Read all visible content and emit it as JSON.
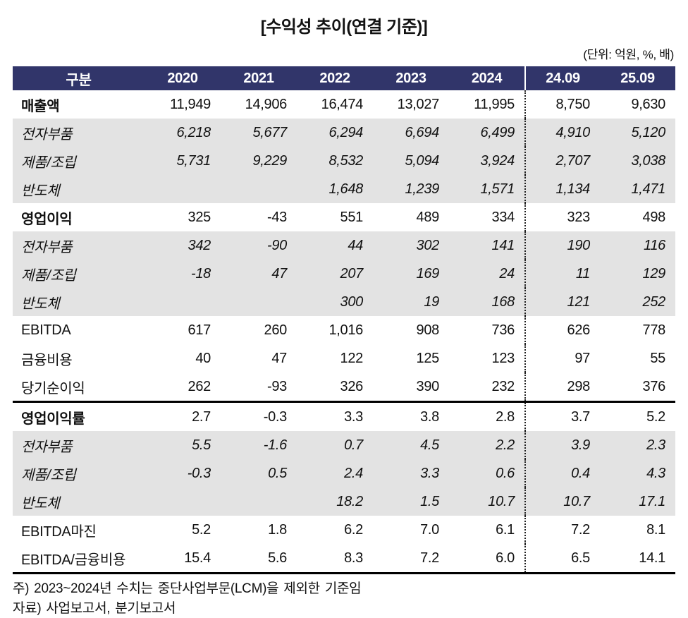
{
  "title": "[수익성 추이(연결 기준)]",
  "unit_note": "(단위: 억원, %, 배)",
  "table": {
    "header": [
      "구분",
      "2020",
      "2021",
      "2022",
      "2023",
      "2024",
      "24.09",
      "25.09"
    ],
    "rows": [
      {
        "label": "매출액",
        "style": "bold",
        "values": [
          "11,949",
          "14,906",
          "16,474",
          "13,027",
          "11,995",
          "8,750",
          "9,630"
        ]
      },
      {
        "label": "전자부품",
        "style": "sub",
        "values": [
          "6,218",
          "5,677",
          "6,294",
          "6,694",
          "6,499",
          "4,910",
          "5,120"
        ]
      },
      {
        "label": "제품/조립",
        "style": "sub",
        "values": [
          "5,731",
          "9,229",
          "8,532",
          "5,094",
          "3,924",
          "2,707",
          "3,038"
        ]
      },
      {
        "label": "반도체",
        "style": "sub",
        "values": [
          "",
          "",
          "1,648",
          "1,239",
          "1,571",
          "1,134",
          "1,471"
        ]
      },
      {
        "label": "영업이익",
        "style": "bold",
        "values": [
          "325",
          "-43",
          "551",
          "489",
          "334",
          "323",
          "498"
        ]
      },
      {
        "label": "전자부품",
        "style": "sub",
        "values": [
          "342",
          "-90",
          "44",
          "302",
          "141",
          "190",
          "116"
        ]
      },
      {
        "label": "제품/조립",
        "style": "sub",
        "values": [
          "-18",
          "47",
          "207",
          "169",
          "24",
          "11",
          "129"
        ]
      },
      {
        "label": "반도체",
        "style": "sub",
        "values": [
          "",
          "",
          "300",
          "19",
          "168",
          "121",
          "252"
        ]
      },
      {
        "label": "EBITDA",
        "style": "plain",
        "values": [
          "617",
          "260",
          "1,016",
          "908",
          "736",
          "626",
          "778"
        ]
      },
      {
        "label": "금융비용",
        "style": "plain",
        "values": [
          "40",
          "47",
          "122",
          "125",
          "123",
          "97",
          "55"
        ]
      },
      {
        "label": "당기순이익",
        "style": "plain",
        "values": [
          "262",
          "-93",
          "326",
          "390",
          "232",
          "298",
          "376"
        ]
      },
      {
        "label": "영업이익률",
        "style": "bold",
        "separator_above": true,
        "values": [
          "2.7",
          "-0.3",
          "3.3",
          "3.8",
          "2.8",
          "3.7",
          "5.2"
        ]
      },
      {
        "label": "전자부품",
        "style": "sub",
        "values": [
          "5.5",
          "-1.6",
          "0.7",
          "4.5",
          "2.2",
          "3.9",
          "2.3"
        ]
      },
      {
        "label": "제품/조립",
        "style": "sub",
        "values": [
          "-0.3",
          "0.5",
          "2.4",
          "3.3",
          "0.6",
          "0.4",
          "4.3"
        ]
      },
      {
        "label": "반도체",
        "style": "sub",
        "values": [
          "",
          "",
          "18.2",
          "1.5",
          "10.7",
          "10.7",
          "17.1"
        ]
      },
      {
        "label": "EBITDA마진",
        "style": "plain",
        "values": [
          "5.2",
          "1.8",
          "6.2",
          "7.0",
          "6.1",
          "7.2",
          "8.1"
        ]
      },
      {
        "label": "EBITDA/금융비용",
        "style": "plain",
        "values": [
          "15.4",
          "5.6",
          "8.3",
          "7.2",
          "6.0",
          "6.5",
          "14.1"
        ]
      }
    ]
  },
  "notes": [
    "주) 2023~2024년 수치는 중단사업부문(LCM)을 제외한 기준임",
    "자료) 사업보고서, 분기보고서"
  ],
  "colors": {
    "header_bg": "#31356A",
    "header_text": "#FFFFFF",
    "subrow_bg": "#E3E3E3",
    "text": "#111111",
    "rule": "#000000"
  }
}
